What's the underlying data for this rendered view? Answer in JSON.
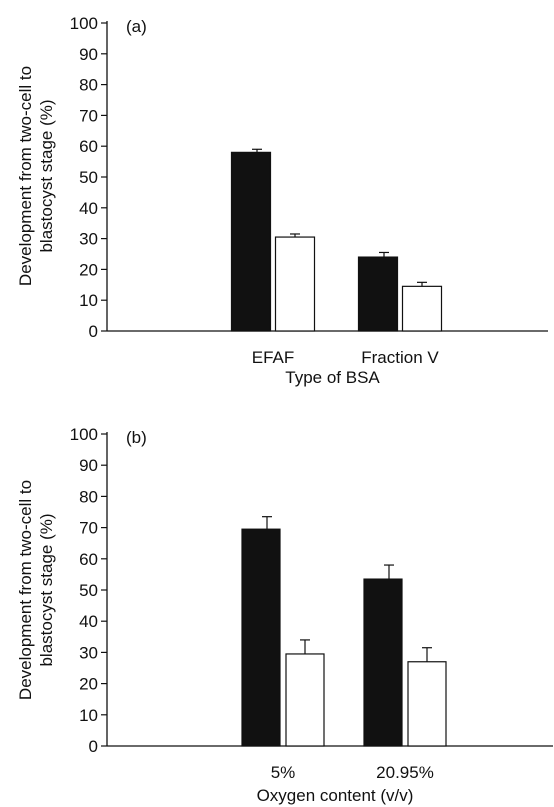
{
  "chart_data": [
    {
      "type": "bar",
      "panel_label": "(a)",
      "title": "",
      "xlabel": "Type of BSA",
      "ylabel": "Development from two-cell to\nblastocyst stage (%)",
      "ylim": [
        0,
        100
      ],
      "yticks": [
        0,
        10,
        20,
        30,
        40,
        50,
        60,
        70,
        80,
        90,
        100
      ],
      "categories": [
        "EFAF",
        "Fraction V"
      ],
      "series": [
        {
          "fill": "#111111",
          "values": [
            58,
            24
          ],
          "errors": [
            1,
            1.5
          ]
        },
        {
          "fill": "#ffffff",
          "values": [
            30.5,
            14.5
          ],
          "errors": [
            1,
            1.3
          ]
        }
      ],
      "grid": false,
      "legend": "none"
    },
    {
      "type": "bar",
      "panel_label": "(b)",
      "title": "",
      "xlabel": "Oxygen content (v/v)",
      "ylabel": "Development from two-cell to\nblastocyst stage (%)",
      "ylim": [
        0,
        100
      ],
      "yticks": [
        0,
        10,
        20,
        30,
        40,
        50,
        60,
        70,
        80,
        90,
        100
      ],
      "categories": [
        "5%",
        "20.95%"
      ],
      "series": [
        {
          "fill": "#111111",
          "values": [
            69.5,
            53.5
          ],
          "errors": [
            4,
            4.5
          ]
        },
        {
          "fill": "#ffffff",
          "values": [
            29.5,
            27
          ],
          "errors": [
            4.5,
            4.5
          ]
        }
      ],
      "grid": false,
      "legend": "none"
    }
  ]
}
